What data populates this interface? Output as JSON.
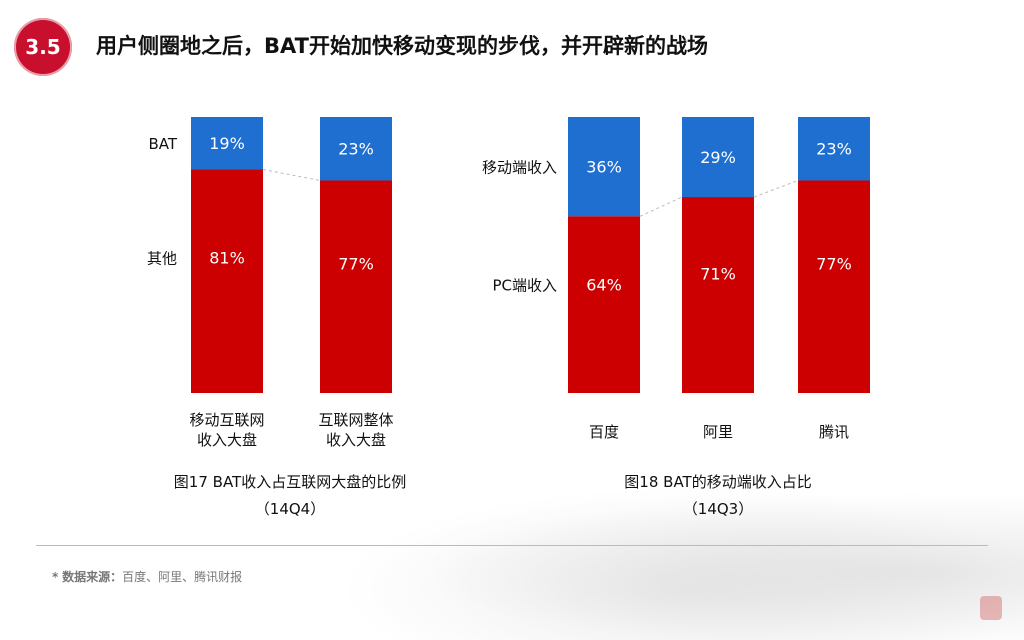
{
  "header": {
    "badge": "3.5",
    "title": "用户侧圈地之后，BAT开始加快移动变现的步伐，并开辟新的战场"
  },
  "colors": {
    "blue": "#1f6fd1",
    "red": "#cc0000",
    "badge": "#c8102e"
  },
  "chart_data": [
    {
      "type": "bar",
      "stacked": true,
      "title": "图17 BAT收入占互联网大盘的比例",
      "subtitle": "（14Q4）",
      "categories": [
        [
          "移动互联网",
          "收入大盘"
        ],
        [
          "互联网整体",
          "收入大盘"
        ]
      ],
      "series": [
        {
          "name": "BAT",
          "values": [
            19,
            23
          ],
          "labels": [
            "19%",
            "23%"
          ]
        },
        {
          "name": "其他",
          "values": [
            81,
            77
          ],
          "labels": [
            "81%",
            "77%"
          ]
        }
      ],
      "ylim": [
        0,
        100
      ]
    },
    {
      "type": "bar",
      "stacked": true,
      "title": "图18 BAT的移动端收入占比",
      "subtitle": "（14Q3）",
      "categories": [
        [
          "百度"
        ],
        [
          "阿里"
        ],
        [
          "腾讯"
        ]
      ],
      "series": [
        {
          "name": "移动端收入",
          "values": [
            36,
            29,
            23
          ],
          "labels": [
            "36%",
            "29%",
            "23%"
          ]
        },
        {
          "name": "PC端收入",
          "values": [
            64,
            71,
            77
          ],
          "labels": [
            "64%",
            "71%",
            "77%"
          ]
        }
      ],
      "ylim": [
        0,
        100
      ]
    }
  ],
  "footer": {
    "star": "*",
    "source_key": "数据来源：",
    "source_value": "百度、阿里、腾讯财报"
  }
}
